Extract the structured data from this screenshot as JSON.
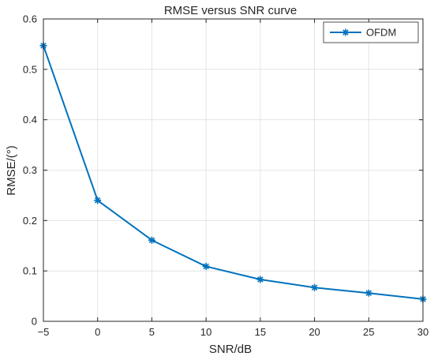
{
  "chart_data": {
    "type": "line",
    "title": "RMSE versus SNR curve",
    "xlabel": "SNR/dB",
    "ylabel": "RMSE/(°)",
    "xlim": [
      -5,
      30
    ],
    "ylim": [
      0,
      0.6
    ],
    "xticks": [
      -5,
      0,
      5,
      10,
      15,
      20,
      25,
      30
    ],
    "yticks": [
      0,
      0.1,
      0.2,
      0.3,
      0.4,
      0.5,
      0.6
    ],
    "xtick_labels": [
      "−5",
      "0",
      "5",
      "10",
      "15",
      "20",
      "25",
      "30"
    ],
    "ytick_labels": [
      "0",
      "0.1",
      "0.2",
      "0.3",
      "0.4",
      "0.5",
      "0.6"
    ],
    "grid": true,
    "legend_position": "top-right",
    "series": [
      {
        "name": "OFDM",
        "color": "#0072BD",
        "marker": "asterisk",
        "x": [
          -5,
          0,
          5,
          10,
          15,
          20,
          25,
          30
        ],
        "y": [
          0.547,
          0.24,
          0.161,
          0.109,
          0.083,
          0.067,
          0.056,
          0.044
        ]
      }
    ]
  }
}
